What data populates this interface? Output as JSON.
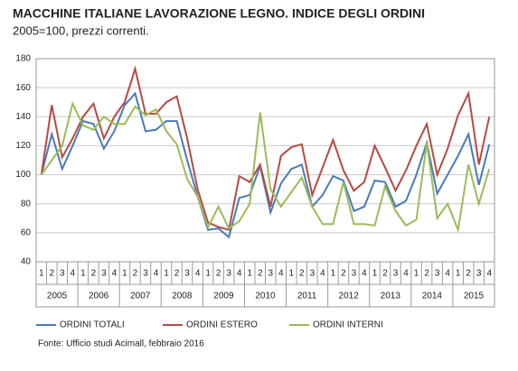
{
  "chart_data": {
    "type": "line",
    "title": "MACCHINE ITALIANE LAVORAZIONE LEGNO. INDICE DEGLI ORDINI",
    "subtitle": "2005=100, prezzi correnti.",
    "categories": [
      "1",
      "2",
      "3",
      "4",
      "1",
      "2",
      "3",
      "4",
      "1",
      "2",
      "3",
      "4",
      "1",
      "2",
      "3",
      "4",
      "1",
      "2",
      "3",
      "4",
      "1",
      "2",
      "3",
      "4",
      "1",
      "2",
      "3",
      "4",
      "1",
      "2",
      "3",
      "4",
      "1",
      "2",
      "3",
      "4",
      "1",
      "2",
      "3",
      "4",
      "1",
      "2",
      "3",
      "4"
    ],
    "year_labels": [
      "2005",
      "2006",
      "2007",
      "2008",
      "2009",
      "2010",
      "2011",
      "2012",
      "2013",
      "2014",
      "2015"
    ],
    "series": [
      {
        "name": "ORDINI TOTALI",
        "color": "#4a7ab8",
        "values": [
          100,
          128,
          104,
          120,
          137,
          135,
          118,
          130,
          148,
          156,
          130,
          131,
          137,
          137,
          110,
          85,
          62,
          63,
          57,
          84,
          86,
          106,
          74,
          94,
          104,
          107,
          78,
          86,
          99,
          96,
          75,
          78,
          96,
          95,
          78,
          82,
          100,
          122,
          87,
          100,
          113,
          128,
          93,
          121
        ]
      },
      {
        "name": "ORDINI ESTERO",
        "color": "#b54a45",
        "values": [
          100,
          148,
          112,
          125,
          140,
          149,
          125,
          140,
          150,
          173,
          142,
          142,
          150,
          154,
          125,
          90,
          67,
          64,
          62,
          99,
          95,
          107,
          78,
          113,
          119,
          121,
          86,
          105,
          124,
          103,
          89,
          95,
          120,
          105,
          89,
          103,
          120,
          135,
          100,
          118,
          141,
          156,
          107,
          140
        ]
      },
      {
        "name": "ORDINI INTERNI",
        "color": "#9bbb59",
        "values": [
          100,
          110,
          120,
          149,
          134,
          131,
          140,
          135,
          135,
          147,
          141,
          145,
          130,
          121,
          97,
          85,
          64,
          78,
          63,
          68,
          80,
          143,
          90,
          78,
          88,
          98,
          78,
          66,
          66,
          95,
          66,
          66,
          65,
          92,
          75,
          65,
          69,
          122,
          70,
          80,
          62,
          107,
          80,
          104
        ]
      }
    ],
    "ylim": [
      40,
      180
    ],
    "yticks": [
      40,
      60,
      80,
      100,
      120,
      140,
      160,
      180
    ],
    "grid": true,
    "source": "Fonte: Ufficio studi Acimall, febbraio 2016"
  }
}
